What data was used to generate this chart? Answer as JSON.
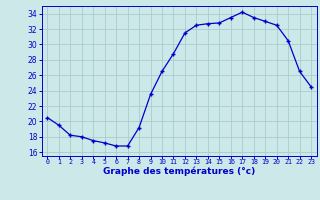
{
  "hours": [
    0,
    1,
    2,
    3,
    4,
    5,
    6,
    7,
    8,
    9,
    10,
    11,
    12,
    13,
    14,
    15,
    16,
    17,
    18,
    19,
    20,
    21,
    22,
    23
  ],
  "temps": [
    20.5,
    19.5,
    18.2,
    18.0,
    17.5,
    17.2,
    16.8,
    16.8,
    19.2,
    23.5,
    26.5,
    28.8,
    31.5,
    32.5,
    32.7,
    32.8,
    33.5,
    34.2,
    33.5,
    33.0,
    32.5,
    30.5,
    26.5,
    24.5
  ],
  "line_color": "#0000cc",
  "marker": "+",
  "bg_color": "#cce8e8",
  "grid_color": "#aacccc",
  "xlabel": "Graphe des températures (°c)",
  "xlabel_color": "#0000cc",
  "xlim": [
    -0.5,
    23.5
  ],
  "ylim": [
    15.5,
    35.0
  ],
  "yticks": [
    16,
    18,
    20,
    22,
    24,
    26,
    28,
    30,
    32,
    34
  ],
  "xtick_labels": [
    "0",
    "1",
    "2",
    "3",
    "4",
    "5",
    "6",
    "7",
    "8",
    "9",
    "10",
    "11",
    "12",
    "13",
    "14",
    "15",
    "16",
    "17",
    "18",
    "19",
    "20",
    "21",
    "22",
    "23"
  ],
  "tick_color": "#0000cc",
  "axis_color": "#0000cc"
}
